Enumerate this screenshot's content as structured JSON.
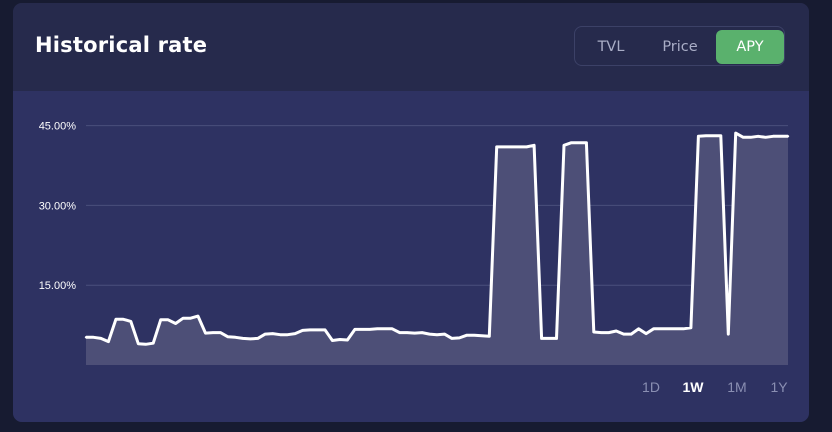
{
  "header": {
    "title": "Historical rate"
  },
  "tabs": [
    {
      "label": "TVL",
      "active": false
    },
    {
      "label": "Price",
      "active": false
    },
    {
      "label": "APY",
      "active": true
    }
  ],
  "colors": {
    "page_bg": "#171b31",
    "card_bg": "#262a4c",
    "chart_bg": "#2e3262",
    "active_tab": "#5ab16d",
    "line": "#ffffff",
    "area_fill": "#4d4f77",
    "grid": "#4a4f7c"
  },
  "ranges": [
    {
      "label": "1D",
      "active": false
    },
    {
      "label": "1W",
      "active": true
    },
    {
      "label": "1M",
      "active": false
    },
    {
      "label": "1Y",
      "active": false
    }
  ],
  "chart_data": {
    "type": "area",
    "title": "",
    "xlabel": "",
    "ylabel": "",
    "ylim": [
      0,
      47
    ],
    "yticks": [
      15,
      30,
      45
    ],
    "ytick_labels": [
      "15.00%",
      "30.00%",
      "45.00%"
    ],
    "grid": true,
    "series": [
      {
        "values": [
          5.2,
          5.2,
          5.0,
          4.4,
          8.6,
          8.6,
          8.2,
          4.0,
          3.9,
          4.1,
          8.5,
          8.5,
          7.8,
          8.8,
          8.8,
          9.2,
          6.0,
          6.1,
          6.1,
          5.3,
          5.2,
          5.0,
          4.9,
          5.0,
          5.8,
          5.9,
          5.7,
          5.7,
          5.9,
          6.5,
          6.6,
          6.6,
          6.6,
          4.6,
          4.8,
          4.7,
          6.7,
          6.7,
          6.7,
          6.8,
          6.8,
          6.8,
          6.1,
          6.1,
          6.0,
          6.1,
          5.8,
          5.7,
          5.8,
          5.0,
          5.1,
          5.6,
          5.6,
          5.5,
          5.4,
          41.0,
          41.0,
          41.0,
          41.0,
          41.0,
          41.3,
          5.0,
          5.0,
          5.0,
          41.3,
          41.8,
          41.8,
          41.8,
          6.2,
          6.1,
          6.1,
          6.4,
          5.8,
          5.8,
          6.8,
          5.9,
          6.8,
          6.8,
          6.8,
          6.8,
          6.8,
          7.0,
          43.0,
          43.1,
          43.1,
          43.1,
          5.8,
          43.6,
          42.8,
          42.8,
          43.0,
          42.8,
          43.0,
          43.0,
          43.0
        ]
      }
    ]
  }
}
